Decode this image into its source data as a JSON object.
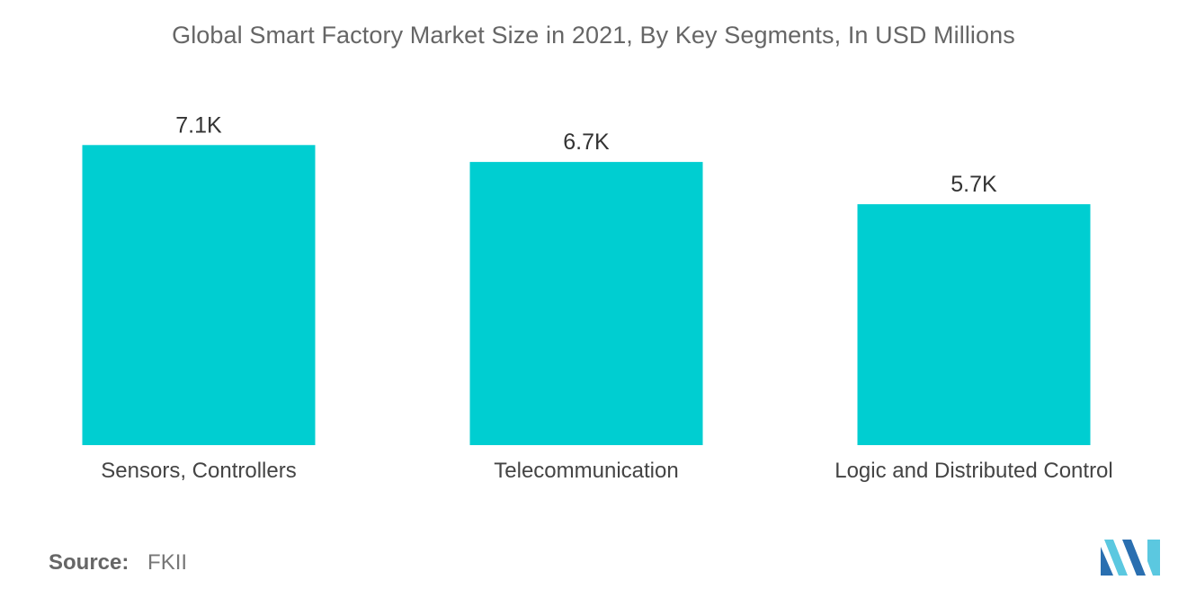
{
  "title": "Global Smart Factory Market Size in 2021, By Key Segments, In USD Millions",
  "source": {
    "label": "Source:",
    "value": "FKII"
  },
  "colors": {
    "bar": "#00CED1",
    "text": "#555555"
  },
  "logo_icon": "mordor-intelligence-logo-icon",
  "chart_data": {
    "type": "bar",
    "title": "Global Smart Factory Market Size in 2021, By Key Segments, In USD Millions",
    "xlabel": "",
    "ylabel": "",
    "categories": [
      "Sensors, Controllers",
      "Telecommunication",
      "Logic and Distributed Control"
    ],
    "values": [
      7100,
      6700,
      5700
    ],
    "data_labels": [
      "7.1K",
      "6.7K",
      "5.7K"
    ],
    "ylim": [
      0,
      10000
    ],
    "grid": false,
    "legend": "none"
  }
}
